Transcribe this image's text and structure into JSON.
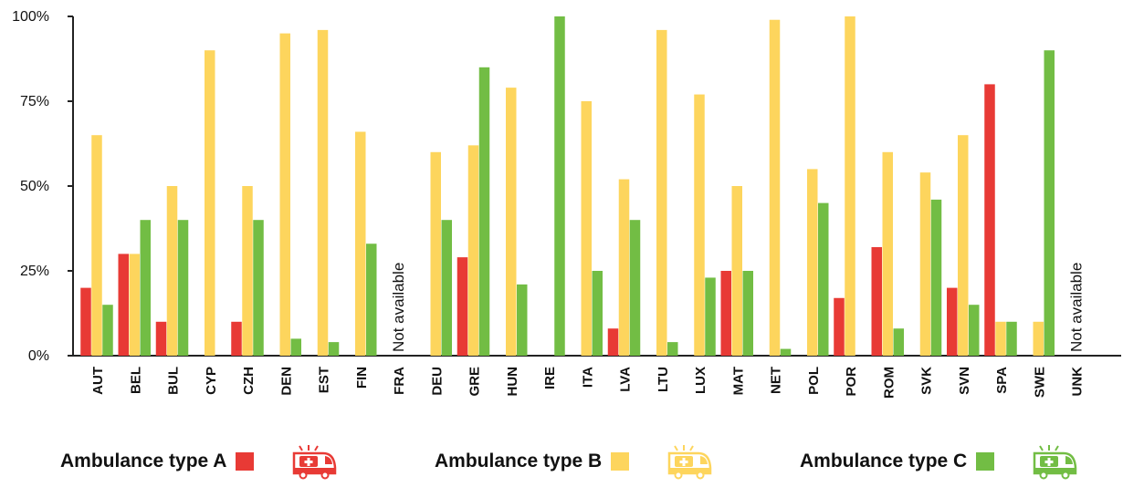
{
  "chart_data": {
    "type": "bar",
    "ylim": [
      0,
      100
    ],
    "yticks": [
      "0%",
      "25%",
      "50%",
      "75%",
      "100%"
    ],
    "categories": [
      "AUT",
      "BEL",
      "BUL",
      "CYP",
      "CZH",
      "DEN",
      "EST",
      "FIN",
      "FRA",
      "DEU",
      "GRE",
      "HUN",
      "IRE",
      "ITA",
      "LVA",
      "LTU",
      "LUX",
      "MAT",
      "NET",
      "POL",
      "POR",
      "ROM",
      "SVK",
      "SVN",
      "SPA",
      "SWE",
      "UNK"
    ],
    "not_available": [
      "FRA",
      "UNK"
    ],
    "not_available_label": "Not available",
    "series": [
      {
        "name": "Ambulance type A",
        "color": "#e83a35",
        "values": [
          20,
          30,
          10,
          0,
          10,
          0,
          0,
          0,
          null,
          0,
          29,
          0,
          0,
          0,
          8,
          0,
          0,
          25,
          0,
          0,
          17,
          32,
          0,
          20,
          80,
          0,
          null
        ]
      },
      {
        "name": "Ambulance type B",
        "color": "#fdd55d",
        "values": [
          65,
          30,
          50,
          90,
          50,
          95,
          96,
          66,
          null,
          60,
          62,
          79,
          0,
          75,
          52,
          96,
          77,
          50,
          99,
          55,
          100,
          60,
          54,
          65,
          10,
          10,
          null
        ]
      },
      {
        "name": "Ambulance type C",
        "color": "#72bd44",
        "values": [
          15,
          40,
          40,
          0,
          40,
          5,
          4,
          33,
          null,
          40,
          85,
          21,
          100,
          25,
          40,
          4,
          23,
          25,
          2,
          45,
          0,
          8,
          46,
          15,
          10,
          90,
          null
        ]
      }
    ],
    "legend_position": "bottom"
  },
  "legend": [
    {
      "label": "Ambulance type A",
      "color": "#e83a35",
      "icon": "ambulance-icon"
    },
    {
      "label": "Ambulance type B",
      "color": "#fdd55d",
      "icon": "ambulance-icon"
    },
    {
      "label": "Ambulance type C",
      "color": "#72bd44",
      "icon": "ambulance-icon"
    }
  ]
}
